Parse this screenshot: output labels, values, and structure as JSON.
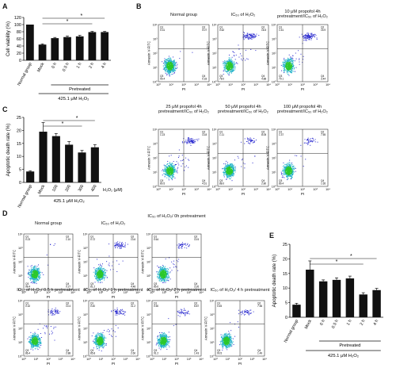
{
  "panels": {
    "A": {
      "label": "A",
      "chart_data": {
        "type": "bar",
        "ylabel": "Cell viability (%)",
        "ylim": [
          0,
          120
        ],
        "yticks": [
          "0",
          "20",
          "40",
          "60",
          "80",
          "100",
          "120"
        ],
        "categories": [
          "Normal group",
          "Mock",
          "0 h",
          "0.5 h",
          "1 h",
          "2 h",
          "4 h"
        ],
        "values": [
          100,
          44,
          62,
          65,
          67,
          79,
          79
        ],
        "errors": [
          0,
          2,
          2,
          3,
          3,
          2,
          2
        ],
        "significance": [
          "*",
          "*"
        ],
        "group_label": "Pretreated",
        "footer": "425.1 μM H₂O₂"
      }
    },
    "C": {
      "label": "C",
      "chart_data": {
        "type": "bar",
        "ylabel": "Apoptotic death rate (%)",
        "ylim": [
          0,
          25
        ],
        "yticks": [
          "0",
          "5",
          "10",
          "15",
          "20",
          "25"
        ],
        "categories": [
          "Normal group",
          "Mock",
          "100",
          "200",
          "300",
          "400"
        ],
        "values": [
          4.2,
          19.5,
          17.8,
          14.5,
          11.5,
          13.5
        ],
        "errors": [
          0.3,
          3.5,
          1.0,
          1.2,
          0.8,
          1.0
        ],
        "significance": [
          "*",
          "*"
        ],
        "unit_label": "H₂O₂ (μM)",
        "footer": "425.1 μM H₂O₂"
      }
    },
    "E": {
      "label": "E",
      "chart_data": {
        "type": "bar",
        "ylabel": "Apoptotic death rate (%)",
        "ylim": [
          0,
          25
        ],
        "yticks": [
          "0",
          "5",
          "10",
          "15",
          "20",
          "25"
        ],
        "categories": [
          "Normal group",
          "Mock",
          "0 h",
          "0.5 h",
          "1 h",
          "2 h",
          "4 h"
        ],
        "values": [
          4.3,
          16.3,
          12.3,
          12.8,
          13.3,
          7.8,
          9.3
        ],
        "errors": [
          0.5,
          3.0,
          0.5,
          0.7,
          0.8,
          0.6,
          0.6
        ],
        "significance": [
          "*",
          "*"
        ],
        "group_label": "Pretreated",
        "footer": "425.1 μM H₂O₂"
      }
    },
    "B": {
      "label": "B",
      "plots": [
        {
          "title": "Normal group",
          "quads": [
            "0.31",
            "0.07",
            "99.4",
            "0.18"
          ]
        },
        {
          "title": "IC₅₀ of H₂O₂",
          "quads": [
            "0.62",
            "16.5",
            "78.0",
            "4.88"
          ]
        },
        {
          "title": "10 μM propofol 4h pretreatment/IC₅₀ of H₂O₂",
          "quads": [
            "1.51",
            "15.9",
            "79.1",
            "3.44"
          ]
        },
        {
          "title": "25 μM propofol 4h pretreatment/IC₅₀ of H₂O₂",
          "quads": [
            "1.23",
            "13.8",
            "80.5",
            "4.51"
          ]
        },
        {
          "title": "50 μM propofol 4h pretreatment/IC₅₀ of H₂O₂",
          "quads": [
            "1.11",
            "8.05",
            "88.0",
            "2.80"
          ]
        },
        {
          "title": "100 μM propofol 4h pretreatment/IC₅₀ of H₂O₂",
          "quads": [
            "1.37",
            "7.55",
            "89.4",
            "1.65"
          ]
        }
      ]
    },
    "D": {
      "label": "D",
      "plots": [
        {
          "title": "Normal group",
          "quads": [
            "0.23",
            "1.10",
            "98.4",
            "0.27"
          ]
        },
        {
          "title": "IC₅₀ of H₂O₂",
          "quads": [
            "0.72",
            "13.6",
            "81.2",
            "4.48"
          ]
        },
        {
          "title": "IC₅₀ of H₂O₂/ 0h pretreatment",
          "quads": [
            "0.64",
            "10.5",
            "85.6",
            "3.26"
          ]
        },
        {
          "title": "IC₅₀ of H₂O₂/ 0.5 h pretreatment",
          "quads": [
            "0.32",
            "10.4",
            "86.4",
            "2.88"
          ]
        },
        {
          "title": "IC₅₀ of H₂O₂/ 1 h pretreatment",
          "quads": [
            "0.40",
            "11.2",
            "85.8",
            "2.60"
          ]
        },
        {
          "title": "IC₅₀ of H₂O₂/ 2 h pretreatment",
          "quads": [
            "0.50",
            "6.87",
            "91.2",
            "1.43"
          ]
        },
        {
          "title": "IC₅₀ of H₂O₂/ 4 h pretreatment",
          "quads": [
            "0.45",
            "7.56",
            "90.5",
            "1.49"
          ]
        }
      ]
    }
  },
  "flow_axes": {
    "x_label": "PI",
    "y_label": "Annexin V-FITC",
    "ticks": [
      "10⁰",
      "10¹",
      "10²",
      "10³",
      "10⁴"
    ],
    "quadrant_names": [
      "Q1",
      "Q2",
      "Q3",
      "Q4"
    ]
  },
  "colors": {
    "bar": "#111111",
    "dense": "#2cc82c",
    "medium": "#20b2c8",
    "sparse": "#3030d0"
  }
}
